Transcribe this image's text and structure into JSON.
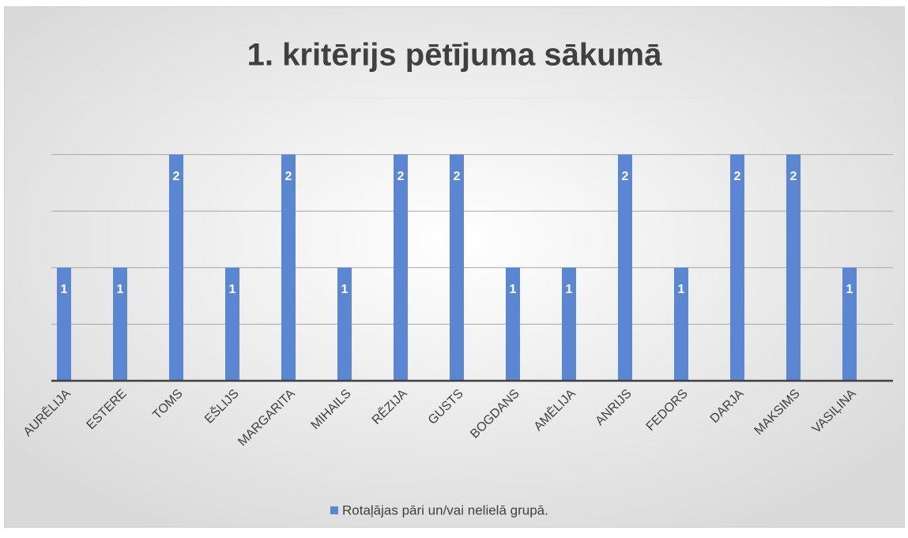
{
  "chart_data": {
    "type": "bar",
    "title": "1. kritērijs pētījuma sākumā",
    "categories": [
      "AURĒLIJA",
      "ESTERE",
      "TOMS",
      "EŠLIJS",
      "MARGARITA",
      "MIHAILS",
      "RĒZIJA",
      "GUSTS",
      "BOGDANS",
      "AMĒLIJA",
      "ANRIJS",
      "FEDORS",
      "DARJA",
      "MAKSIMS",
      "VASIĻINA"
    ],
    "series": [
      {
        "name": "Rotaļājas pāri un/vai nelielā grupā.",
        "color": "#5b87d2",
        "values": [
          1,
          1,
          2,
          1,
          2,
          1,
          2,
          2,
          1,
          1,
          2,
          1,
          2,
          2,
          1
        ]
      }
    ],
    "ylim": [
      0,
      2.5
    ],
    "yticks": [
      0,
      0.5,
      1,
      1.5,
      2,
      2.5
    ],
    "grid": true,
    "legend": "bottom"
  }
}
